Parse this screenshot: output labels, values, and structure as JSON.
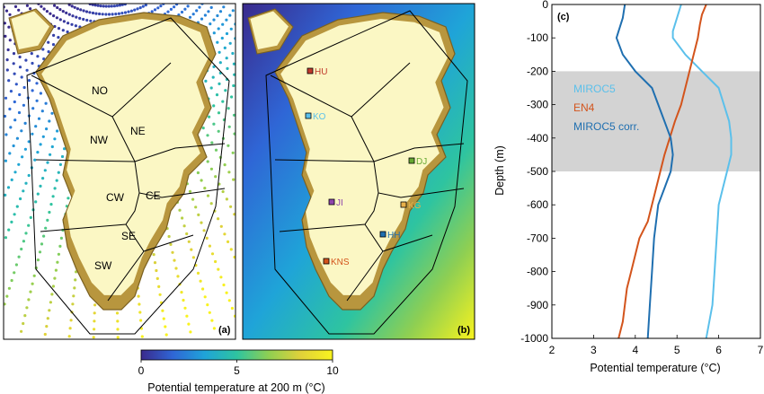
{
  "colors": {
    "ocean": "#ffffff",
    "ice": "#fbf7c4",
    "rock": "#b8963e",
    "rock_dark": "#7a6020",
    "line": "#000000",
    "shade": "#d3d3d3"
  },
  "panel_a": {
    "label": "(a)",
    "regions": [
      "NO",
      "NE",
      "NW",
      "CW",
      "CE",
      "SE",
      "SW"
    ]
  },
  "panel_b": {
    "label": "(b)",
    "sites": [
      {
        "name": "HU",
        "color": "#c0392b"
      },
      {
        "name": "KO",
        "color": "#5bc0eb"
      },
      {
        "name": "DJ",
        "color": "#66a832"
      },
      {
        "name": "JI",
        "color": "#8e44ad"
      },
      {
        "name": "KG",
        "color": "#e8b04a"
      },
      {
        "name": "HH",
        "color": "#1f6fb0"
      },
      {
        "name": "KNS",
        "color": "#d3541c"
      }
    ]
  },
  "colorbar": {
    "min": 0,
    "max": 10,
    "ticks": [
      "0",
      "5",
      "10"
    ],
    "label": "Potential temperature at 200 m (°C)",
    "stops": [
      "#3a2a8c",
      "#2f66d6",
      "#1fa4d8",
      "#2ec4a0",
      "#8fcf52",
      "#e0d13a",
      "#f9f31e"
    ]
  },
  "chart_data": {
    "type": "line",
    "panel_label": "(c)",
    "xlabel": "Potential temperature (°C)",
    "ylabel": "Depth (m)",
    "xlim": [
      2,
      7
    ],
    "ylim": [
      -1000,
      0
    ],
    "xticks": [
      "2",
      "3",
      "4",
      "5",
      "6",
      "7"
    ],
    "yticks": [
      "0",
      "-100",
      "-200",
      "-300",
      "-400",
      "-500",
      "-600",
      "-700",
      "-800",
      "-900",
      "-1000"
    ],
    "shaded_band": [
      -500,
      -200
    ],
    "legend": [
      {
        "name": "MIROC5",
        "color": "#5bc0eb"
      },
      {
        "name": "EN4",
        "color": "#d3541c"
      },
      {
        "name": "MIROC5 corr.",
        "color": "#1f6fb0"
      }
    ],
    "series": [
      {
        "name": "MIROC5",
        "color": "#5bc0eb",
        "x": [
          5.1,
          5.0,
          4.9,
          4.9,
          5.2,
          5.6,
          6.0,
          6.25,
          6.3,
          6.3,
          6.2,
          6.1,
          6.0,
          5.95,
          5.9,
          5.85,
          5.7
        ],
        "y": [
          0,
          -40,
          -80,
          -100,
          -150,
          -200,
          -250,
          -350,
          -400,
          -450,
          -500,
          -550,
          -600,
          -700,
          -800,
          -900,
          -1000
        ]
      },
      {
        "name": "EN4",
        "color": "#d3541c",
        "x": [
          5.7,
          5.6,
          5.55,
          5.5,
          5.3,
          5.1,
          4.95,
          4.7,
          4.5,
          4.3,
          4.1,
          3.9,
          3.8,
          3.75,
          3.7,
          3.6
        ],
        "y": [
          0,
          -30,
          -60,
          -100,
          -200,
          -300,
          -350,
          -450,
          -550,
          -650,
          -700,
          -800,
          -850,
          -900,
          -950,
          -1000
        ]
      },
      {
        "name": "MIROC5 corr.",
        "color": "#1f6fb0",
        "x": [
          3.75,
          3.7,
          3.6,
          3.55,
          3.7,
          4.0,
          4.4,
          4.7,
          4.85,
          4.9,
          4.85,
          4.7,
          4.55,
          4.45,
          4.4,
          4.35,
          4.3
        ],
        "y": [
          0,
          -40,
          -80,
          -100,
          -150,
          -200,
          -250,
          -350,
          -400,
          -450,
          -500,
          -550,
          -600,
          -700,
          -800,
          -900,
          -1000
        ]
      }
    ]
  }
}
